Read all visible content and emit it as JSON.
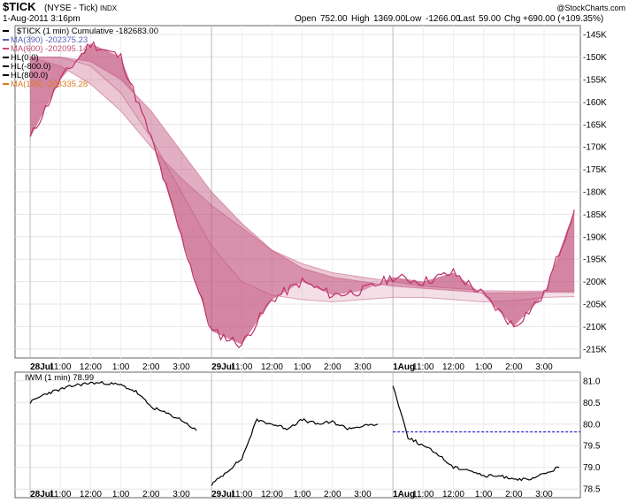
{
  "header": {
    "symbol": "$TICK",
    "exchange": "(NYSE - Tick)",
    "index_tag": "INDX",
    "date_time": "1-Aug-2011 3:16pm",
    "copyright": "@StockCharts.com",
    "ohlc": {
      "open_label": "Open",
      "open": "752.00",
      "high_label": "High",
      "high": "1369.00",
      "low_label": "Low",
      "low": "-1266.00",
      "last_label": "Last",
      "last": "59.00",
      "chg_label": "Chg",
      "chg": "+690.00 (+109.35%)"
    }
  },
  "legend_top": [
    {
      "text": "$TICK (1 min) Cumulative -182683.00",
      "color": "#000000"
    },
    {
      "text": "MA(390) -202375.23",
      "color": "#5b5fb5"
    },
    {
      "text": "MA(600) -202095.14",
      "color": "#c0506b"
    },
    {
      "text": "HL(0.0)",
      "color": "#000000"
    },
    {
      "text": "HL(-800.0)",
      "color": "#000000"
    },
    {
      "text": "HL(800.0)",
      "color": "#000000"
    },
    {
      "text": "MA(195) -203335.28",
      "color": "#e07a20"
    }
  ],
  "legend_bottom": {
    "text": "IWM (1 min) 78.99"
  },
  "x_ticks": [
    "28Jul",
    "11:00",
    "12:00",
    "1:00",
    "2:00",
    "3:00",
    "29Jul",
    "11:00",
    "12:00",
    "1:00",
    "2:00",
    "3:00",
    "1Aug",
    "11:00",
    "12:00",
    "1:00",
    "2:00",
    "3:00"
  ],
  "y_ticks_top": [
    "-145K",
    "-150K",
    "-155K",
    "-160K",
    "-165K",
    "-170K",
    "-175K",
    "-180K",
    "-185K",
    "-190K",
    "-195K",
    "-200K",
    "-205K",
    "-210K",
    "-215K"
  ],
  "y_ticks_bottom": [
    "81.0",
    "80.5",
    "80.0",
    "79.5",
    "79.0",
    "78.5"
  ],
  "colors": {
    "main_line": "#c0306a",
    "shade": "#c0507a",
    "iwm_line": "#000000",
    "ref_line": "#0000cc"
  },
  "chart_data": [
    {
      "type": "line",
      "title": "$TICK (NYSE - Tick) INDX",
      "ylim": [
        -217000,
        -143000
      ],
      "x": [
        0,
        1,
        2,
        3,
        4,
        5,
        6,
        7,
        8,
        9,
        10,
        11,
        12,
        13,
        14,
        15,
        16,
        17,
        18
      ],
      "x_tick_positions": [
        0,
        1,
        2,
        3,
        4,
        5,
        6,
        7,
        8,
        9,
        10,
        11,
        12,
        13,
        14,
        15,
        16,
        17
      ],
      "xlim": [
        -0.5,
        18.2
      ],
      "series": [
        {
          "name": "$TICK (1 min) Cumulative",
          "values": [
            -168000,
            -155000,
            -147000,
            -150000,
            -168000,
            -190000,
            -211000,
            -214000,
            -204000,
            -200000,
            -203000,
            -202000,
            -199000,
            -200000,
            -198000,
            -203000,
            -210000,
            -203000,
            -184000
          ]
        },
        {
          "name": "MA(390)",
          "values": [
            -150000,
            -150000,
            -151000,
            -155000,
            -162000,
            -171000,
            -180000,
            -187000,
            -193000,
            -197000,
            -199000,
            -200000,
            -201000,
            -201500,
            -202000,
            -202500,
            -202500,
            -202400,
            -202375
          ]
        },
        {
          "name": "MA(600)",
          "values": [
            -150000,
            -152000,
            -156000,
            -162000,
            -170000,
            -177000,
            -183000,
            -188000,
            -193000,
            -196000,
            -198000,
            -199000,
            -200000,
            -201000,
            -201500,
            -202000,
            -202100,
            -202100,
            -202095
          ]
        },
        {
          "name": "MA(195)",
          "values": [
            -150000,
            -150000,
            -152000,
            -158000,
            -168000,
            -180000,
            -192000,
            -200000,
            -203000,
            -204000,
            -204500,
            -204000,
            -203500,
            -203500,
            -204000,
            -204500,
            -204200,
            -203500,
            -203335
          ]
        }
      ]
    },
    {
      "type": "line",
      "title": "IWM (1 min)",
      "ylim": [
        78.3,
        81.2
      ],
      "x": [
        0,
        0.5,
        1,
        1.5,
        2,
        2.5,
        3,
        3.5,
        4,
        4.5,
        5,
        5.5,
        6,
        6.5,
        7,
        7.5,
        8,
        8.5,
        9,
        9.5,
        10,
        10.5,
        11,
        11.5,
        12,
        12.5,
        13,
        13.5,
        14,
        14.5,
        15,
        15.5,
        16,
        16.5,
        17,
        17.5
      ],
      "series": [
        {
          "name": "IWM (1 min)",
          "values": [
            80.5,
            80.7,
            80.8,
            80.9,
            80.95,
            80.95,
            80.9,
            80.75,
            80.4,
            80.25,
            80.1,
            79.85,
            78.6,
            78.9,
            79.2,
            80.1,
            80.0,
            79.9,
            80.1,
            80.0,
            80.05,
            79.9,
            79.95,
            80.0,
            80.9,
            79.7,
            79.5,
            79.3,
            79.0,
            78.95,
            78.8,
            78.8,
            78.75,
            78.7,
            78.85,
            79.0
          ]
        }
      ],
      "ref_line": 79.82
    }
  ]
}
